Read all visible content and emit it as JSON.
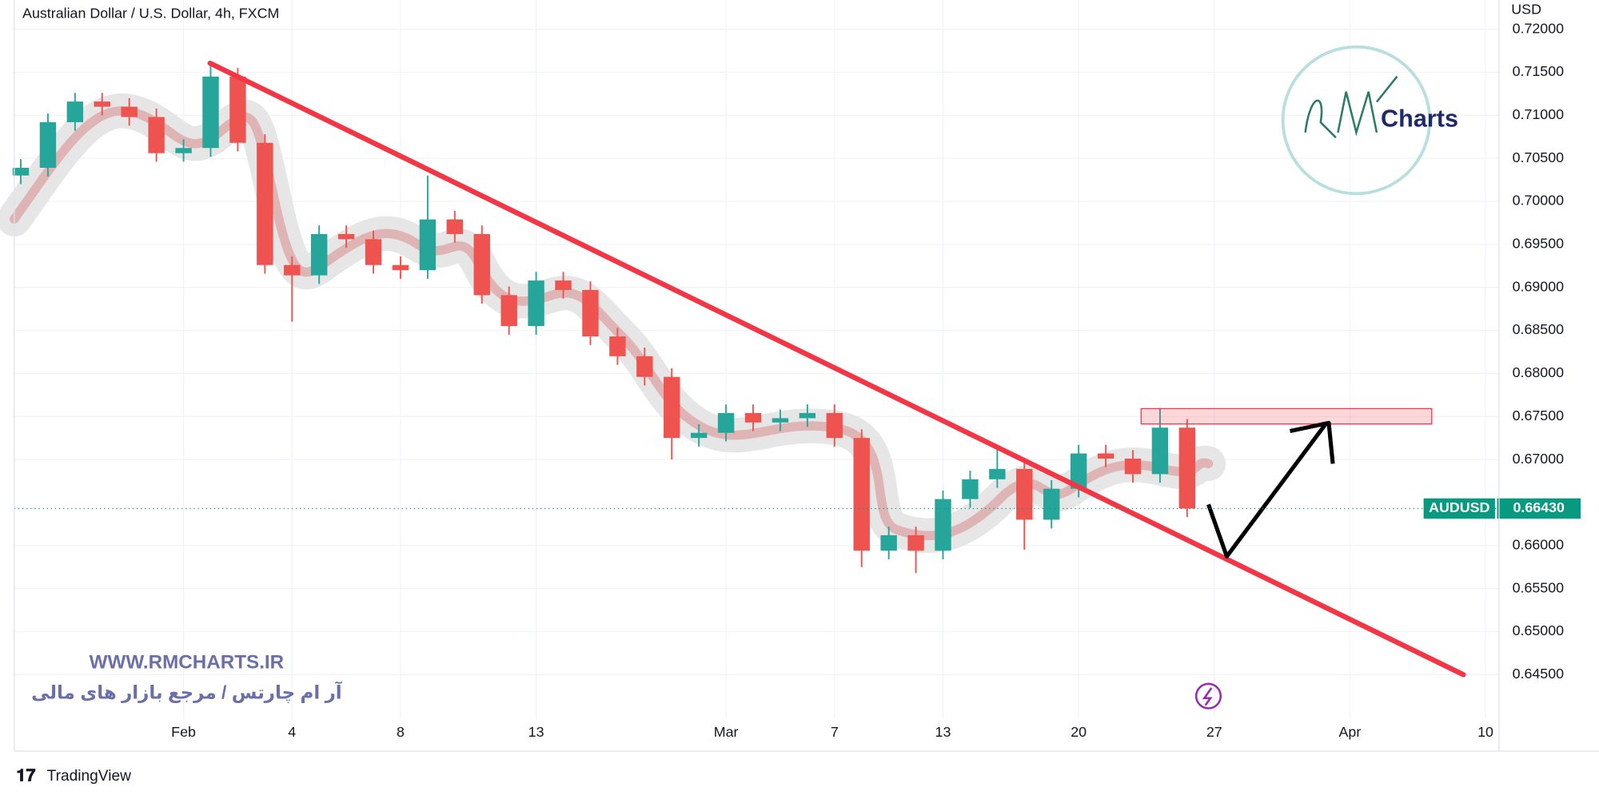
{
  "chart_data": {
    "type": "candlestick",
    "title": "Australian Dollar / U.S. Dollar, 4h, FXCM",
    "currency": "USD",
    "up_color": "#26a69a",
    "down_color": "#ef5350",
    "x": [
      -6,
      -5,
      -4,
      -3,
      -2,
      -1,
      0,
      1,
      2,
      3,
      4,
      5,
      6,
      7,
      8,
      9,
      10,
      11,
      12,
      13,
      14,
      15,
      16,
      17,
      18,
      19,
      20,
      21,
      22,
      23,
      24,
      25,
      26,
      27,
      28,
      29,
      30,
      31,
      32,
      33,
      34,
      35,
      36,
      37
    ],
    "open": [
      0.703,
      0.7039,
      0.7092,
      0.7116,
      0.711,
      0.7098,
      0.7056,
      0.7062,
      0.7145,
      0.7068,
      0.6926,
      0.6914,
      0.6962,
      0.6956,
      0.6926,
      0.692,
      0.6979,
      0.6962,
      0.6891,
      0.6855,
      0.6908,
      0.6897,
      0.6843,
      0.682,
      0.6796,
      0.6725,
      0.6731,
      0.6754,
      0.6743,
      0.6748,
      0.6754,
      0.6725,
      0.6594,
      0.6612,
      0.6594,
      0.6654,
      0.6677,
      0.6689,
      0.663,
      0.6666,
      0.6707,
      0.6701,
      0.6683,
      0.6737
    ],
    "high": [
      0.7049,
      0.7102,
      0.7126,
      0.7126,
      0.712,
      0.7108,
      0.7072,
      0.716,
      0.7155,
      0.7078,
      0.6936,
      0.6972,
      0.6972,
      0.6966,
      0.6936,
      0.703,
      0.6989,
      0.6972,
      0.6901,
      0.6918,
      0.6918,
      0.6907,
      0.6853,
      0.683,
      0.6806,
      0.6741,
      0.6764,
      0.6764,
      0.6758,
      0.6764,
      0.6764,
      0.6735,
      0.6622,
      0.6622,
      0.6664,
      0.6687,
      0.6712,
      0.6699,
      0.6676,
      0.6717,
      0.6717,
      0.6711,
      0.676,
      0.6747
    ],
    "low": [
      0.702,
      0.7029,
      0.7082,
      0.71,
      0.7088,
      0.7046,
      0.7046,
      0.7052,
      0.7058,
      0.6916,
      0.686,
      0.6904,
      0.6946,
      0.6916,
      0.691,
      0.691,
      0.6952,
      0.6881,
      0.6845,
      0.6845,
      0.6887,
      0.6833,
      0.681,
      0.6786,
      0.67,
      0.6715,
      0.6721,
      0.6733,
      0.6733,
      0.6738,
      0.6715,
      0.6575,
      0.6584,
      0.6568,
      0.6584,
      0.6644,
      0.6667,
      0.6595,
      0.662,
      0.6656,
      0.6691,
      0.6673,
      0.6673,
      0.6633
    ],
    "close": [
      0.7039,
      0.7092,
      0.7116,
      0.711,
      0.7098,
      0.7056,
      0.7062,
      0.7145,
      0.7068,
      0.6926,
      0.6914,
      0.6962,
      0.6956,
      0.6926,
      0.692,
      0.6979,
      0.6962,
      0.6891,
      0.6855,
      0.6908,
      0.6897,
      0.6843,
      0.682,
      0.6796,
      0.6725,
      0.6731,
      0.6754,
      0.6743,
      0.6748,
      0.6754,
      0.6725,
      0.6594,
      0.6612,
      0.6594,
      0.6654,
      0.6677,
      0.6689,
      0.663,
      0.6666,
      0.6707,
      0.6701,
      0.6683,
      0.6737,
      0.6643
    ],
    "xlim": [
      -6.24,
      48.5
    ],
    "xticks": [
      {
        "value": 0,
        "label": "Feb"
      },
      4,
      8,
      13,
      {
        "value": 20,
        "label": "Mar"
      },
      {
        "value": 24,
        "label": "7"
      },
      {
        "value": 28,
        "label": "13"
      },
      {
        "value": 33,
        "label": "20"
      },
      {
        "value": 38,
        "label": "27"
      },
      {
        "value": 43,
        "label": "Apr"
      },
      {
        "value": 48,
        "label": "10"
      }
    ],
    "ylim": [
      0.6399,
      0.7234
    ],
    "yticks": [
      {
        "value": 0.72,
        "label": "0.72000"
      },
      {
        "value": 0.715,
        "label": "0.71500"
      },
      {
        "value": 0.71,
        "label": "0.71000"
      },
      {
        "value": 0.705,
        "label": "0.70500"
      },
      {
        "value": 0.7,
        "label": "0.70000"
      },
      {
        "value": 0.695,
        "label": "0.69500"
      },
      {
        "value": 0.69,
        "label": "0.69000"
      },
      {
        "value": 0.685,
        "label": "0.68500"
      },
      {
        "value": 0.68,
        "label": "0.68000"
      },
      {
        "value": 0.675,
        "label": "0.67500"
      },
      {
        "value": 0.67,
        "label": "0.67000"
      },
      {
        "value": 0.66,
        "label": "0.66000"
      },
      {
        "value": 0.655,
        "label": "0.65500"
      },
      {
        "value": 0.65,
        "label": "0.65000"
      },
      {
        "value": 0.645,
        "label": "0.64500"
      }
    ],
    "last_price": {
      "symbol": "AUDUSD",
      "value": 0.6643,
      "value_label": "0.66430",
      "color": "#089981"
    }
  },
  "watermark": {
    "site": "WWW.RMCHARTS.IR",
    "tagline": "آر ام چارتس / مرجع بازار های مالی",
    "logo": "Charts"
  },
  "footer": {
    "brand": "TradingView"
  }
}
